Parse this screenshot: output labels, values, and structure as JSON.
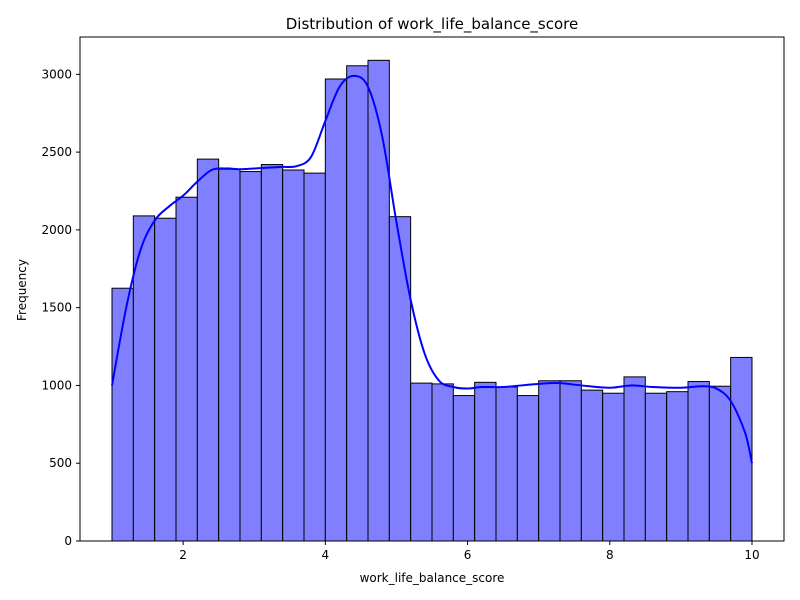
{
  "chart_data": {
    "type": "bar",
    "title": "Distribution of work_life_balance_score",
    "xlabel": "work_life_balance_score",
    "ylabel": "Frequency",
    "xlim": [
      0.55,
      10.45
    ],
    "ylim": [
      0,
      3240
    ],
    "grid": false,
    "legend": "none",
    "xticks": [
      2,
      4,
      6,
      8,
      10
    ],
    "yticks": [
      0,
      500,
      1000,
      1500,
      2000,
      2500,
      3000
    ],
    "bin_edges": [
      1.0,
      1.3,
      1.6,
      1.9,
      2.2,
      2.5,
      2.8,
      3.1,
      3.4,
      3.7,
      4.0,
      4.3,
      4.6,
      4.9,
      5.2,
      5.5,
      5.8,
      6.1,
      6.4,
      6.7,
      7.0,
      7.3,
      7.6,
      7.9,
      8.2,
      8.5,
      8.8,
      9.1,
      9.4,
      9.7,
      10.0
    ],
    "values": [
      1625,
      2090,
      2075,
      2210,
      2455,
      2390,
      2375,
      2420,
      2385,
      2365,
      2970,
      3055,
      3090,
      2085,
      1015,
      1010,
      935,
      1020,
      990,
      935,
      1030,
      1030,
      970,
      950,
      1055,
      950,
      960,
      1025,
      995,
      1180
    ],
    "kde": {
      "x": [
        1.0,
        1.2,
        1.4,
        1.6,
        1.8,
        2.0,
        2.2,
        2.4,
        2.6,
        2.8,
        3.0,
        3.2,
        3.4,
        3.6,
        3.8,
        4.0,
        4.2,
        4.4,
        4.6,
        4.8,
        5.0,
        5.2,
        5.4,
        5.6,
        5.8,
        6.0,
        6.2,
        6.5,
        7.0,
        7.3,
        7.6,
        8.0,
        8.3,
        8.6,
        9.0,
        9.3,
        9.5,
        9.7,
        9.9,
        10.0
      ],
      "y": [
        1000,
        1500,
        1870,
        2060,
        2150,
        2220,
        2310,
        2385,
        2395,
        2390,
        2395,
        2400,
        2405,
        2410,
        2470,
        2700,
        2920,
        2990,
        2920,
        2600,
        2050,
        1550,
        1200,
        1030,
        990,
        980,
        990,
        990,
        1010,
        1015,
        1000,
        985,
        1000,
        990,
        985,
        995,
        980,
        900,
        700,
        500
      ]
    },
    "bar_color": "#8080ff",
    "bar_edge_color": "#000000",
    "kde_color": "#0000ff"
  }
}
